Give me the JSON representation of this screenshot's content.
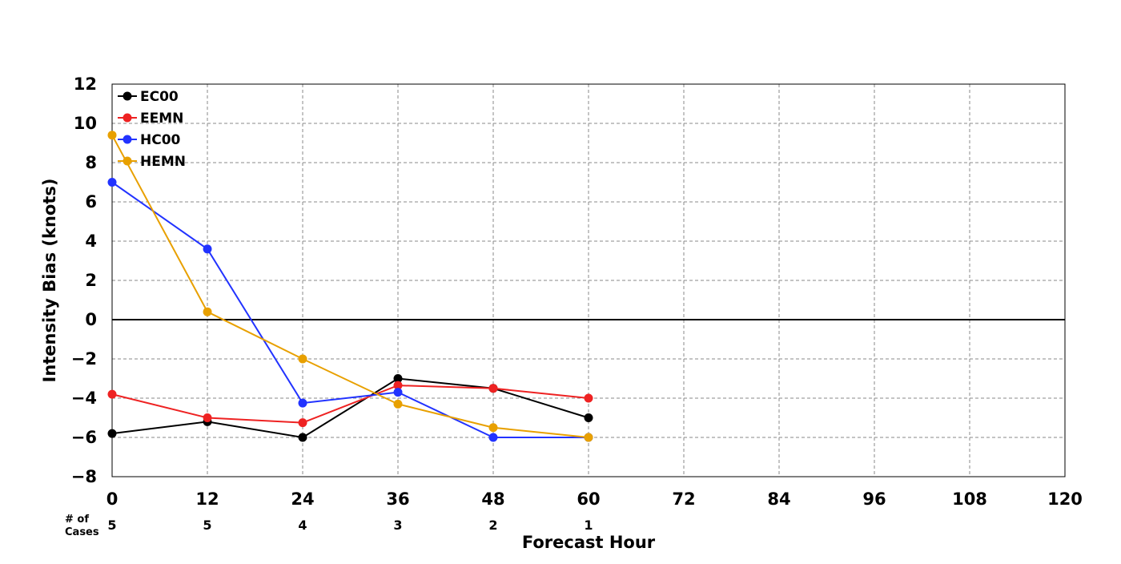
{
  "chart_data": {
    "type": "line",
    "title": "",
    "xlabel": "Forecast Hour",
    "ylabel": "Intensity Bias (knots)",
    "xlim": [
      0,
      120
    ],
    "ylim": [
      -8,
      12
    ],
    "x_ticks": [
      "0",
      "12",
      "24",
      "36",
      "48",
      "60",
      "72",
      "84",
      "96",
      "108",
      "120"
    ],
    "y_ticks": [
      "12",
      "10",
      "8",
      "6",
      "4",
      "2",
      "0",
      "−2",
      "−4",
      "−6",
      "−8"
    ],
    "grid": true,
    "legend_position": "top-left",
    "x": [
      0,
      12,
      24,
      36,
      48,
      60
    ],
    "series": [
      {
        "name": "EC00",
        "color": "#000000",
        "values": [
          -5.8,
          -5.2,
          -6.0,
          -3.0,
          -3.5,
          -5.0
        ]
      },
      {
        "name": "EEMN",
        "color": "#ee2222",
        "values": [
          -3.8,
          -5.0,
          -5.25,
          -3.35,
          -3.5,
          -4.0
        ]
      },
      {
        "name": "HC00",
        "color": "#2233ff",
        "values": [
          7.0,
          3.6,
          -4.25,
          -3.7,
          -6.0,
          -6.0
        ]
      },
      {
        "name": "HEMN",
        "color": "#e8a000",
        "values": [
          9.4,
          0.4,
          -2.0,
          -4.3,
          -5.5,
          -6.0
        ]
      }
    ],
    "cases": {
      "label_line1": "# of",
      "label_line2": "Cases",
      "x": [
        0,
        12,
        24,
        36,
        48,
        60
      ],
      "values": [
        "5",
        "5",
        "4",
        "3",
        "2",
        "1"
      ]
    }
  }
}
